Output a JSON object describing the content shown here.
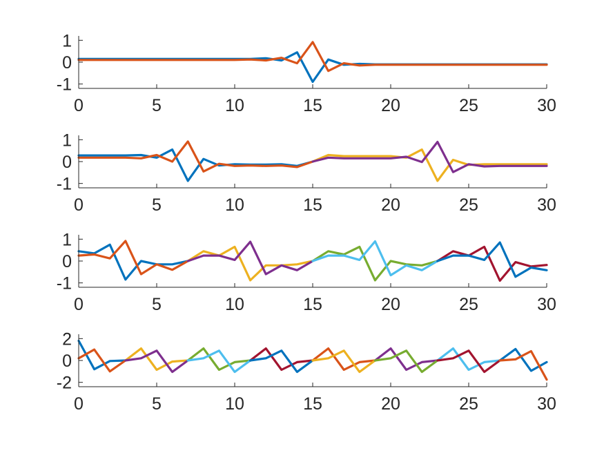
{
  "chart_data": [
    {
      "type": "line",
      "xlim": [
        0,
        30
      ],
      "ylim": [
        -1.2,
        1.2
      ],
      "xticks": [
        "0",
        "5",
        "10",
        "15",
        "20",
        "25",
        "30"
      ],
      "yticks": [
        "1",
        "0",
        "-1"
      ],
      "yticks_values": [
        1,
        0,
        -1
      ],
      "grid": false,
      "series": [
        {
          "color": "#0072BD",
          "x": [
            0,
            1,
            2,
            3,
            4,
            5,
            6,
            7,
            8,
            9,
            10,
            11,
            12,
            13,
            14,
            15,
            16,
            17,
            18,
            19,
            20,
            21,
            22,
            23,
            24,
            25,
            26,
            27,
            28,
            29,
            30
          ],
          "y": [
            0.15,
            0.15,
            0.15,
            0.15,
            0.15,
            0.15,
            0.15,
            0.15,
            0.15,
            0.15,
            0.15,
            0.15,
            0.18,
            0.08,
            0.45,
            -0.9,
            0.12,
            -0.12,
            -0.08,
            -0.1,
            -0.1,
            -0.1,
            -0.1,
            -0.1,
            -0.1,
            -0.1,
            -0.1,
            -0.1,
            -0.1,
            -0.1,
            -0.1
          ]
        },
        {
          "color": "#D95319",
          "x": [
            0,
            1,
            2,
            3,
            4,
            5,
            6,
            7,
            8,
            9,
            10,
            11,
            12,
            13,
            14,
            15,
            16,
            17,
            18,
            19,
            20,
            21,
            22,
            23,
            24,
            25,
            26,
            27,
            28,
            29,
            30
          ],
          "y": [
            0.1,
            0.1,
            0.1,
            0.1,
            0.1,
            0.1,
            0.1,
            0.1,
            0.1,
            0.1,
            0.1,
            0.12,
            0.08,
            0.2,
            -0.05,
            0.92,
            -0.4,
            -0.05,
            -0.15,
            -0.12,
            -0.12,
            -0.12,
            -0.12,
            -0.12,
            -0.12,
            -0.12,
            -0.12,
            -0.12,
            -0.12,
            -0.12,
            -0.12
          ]
        }
      ]
    },
    {
      "type": "line",
      "xlim": [
        0,
        30
      ],
      "ylim": [
        -1.2,
        1.2
      ],
      "xticks": [
        "0",
        "5",
        "10",
        "15",
        "20",
        "25",
        "30"
      ],
      "yticks": [
        "1",
        "0",
        "-1"
      ],
      "yticks_values": [
        1,
        0,
        -1
      ],
      "grid": false,
      "series": [
        {
          "color": "#0072BD",
          "x": [
            0,
            1,
            2,
            3,
            4,
            5,
            6,
            7,
            8,
            9,
            10,
            11,
            12,
            13,
            14,
            15
          ],
          "y": [
            0.28,
            0.28,
            0.28,
            0.28,
            0.3,
            0.18,
            0.55,
            -0.88,
            0.12,
            -0.18,
            -0.12,
            -0.14,
            -0.14,
            -0.12,
            -0.2,
            0.0
          ]
        },
        {
          "color": "#D95319",
          "x": [
            0,
            1,
            2,
            3,
            4,
            5,
            6,
            7,
            8,
            9,
            10,
            11,
            12,
            13,
            14,
            15
          ],
          "y": [
            0.18,
            0.18,
            0.18,
            0.18,
            0.15,
            0.3,
            0.0,
            0.92,
            -0.45,
            -0.1,
            -0.2,
            -0.18,
            -0.2,
            -0.18,
            -0.25,
            0.0
          ]
        },
        {
          "color": "#EDB120",
          "x": [
            15,
            16,
            17,
            18,
            19,
            20,
            21,
            22,
            23,
            24,
            25,
            26,
            27,
            28,
            29,
            30
          ],
          "y": [
            0.0,
            0.3,
            0.25,
            0.25,
            0.25,
            0.25,
            0.18,
            0.55,
            -0.88,
            0.08,
            -0.15,
            -0.12,
            -0.12,
            -0.12,
            -0.12,
            -0.12
          ]
        },
        {
          "color": "#7E2F8E",
          "x": [
            15,
            16,
            17,
            18,
            19,
            20,
            21,
            22,
            23,
            24,
            25,
            26,
            27,
            28,
            29,
            30
          ],
          "y": [
            0.0,
            0.18,
            0.15,
            0.15,
            0.15,
            0.15,
            0.22,
            -0.02,
            0.9,
            -0.48,
            -0.12,
            -0.22,
            -0.2,
            -0.2,
            -0.2,
            -0.2
          ]
        }
      ]
    },
    {
      "type": "line",
      "xlim": [
        0,
        30
      ],
      "ylim": [
        -1.2,
        1.2
      ],
      "xticks": [
        "0",
        "5",
        "10",
        "15",
        "20",
        "25",
        "30"
      ],
      "yticks": [
        "1",
        "0",
        "-1"
      ],
      "yticks_values": [
        1,
        0,
        -1
      ],
      "grid": false,
      "series": [
        {
          "color": "#0072BD",
          "x": [
            0,
            1,
            2,
            3,
            4,
            5,
            6,
            7
          ],
          "y": [
            0.45,
            0.35,
            0.75,
            -0.85,
            0.0,
            -0.15,
            -0.15,
            0.0
          ]
        },
        {
          "color": "#D95319",
          "x": [
            0,
            1,
            2,
            3,
            4,
            5,
            6,
            7
          ],
          "y": [
            0.25,
            0.3,
            0.12,
            0.92,
            -0.6,
            -0.15,
            -0.4,
            0.0
          ]
        },
        {
          "color": "#EDB120",
          "x": [
            7,
            8,
            9,
            10,
            11,
            12,
            13,
            14,
            15
          ],
          "y": [
            0.0,
            0.45,
            0.25,
            0.65,
            -0.88,
            -0.2,
            -0.2,
            -0.15,
            0.0
          ]
        },
        {
          "color": "#7E2F8E",
          "x": [
            7,
            8,
            9,
            10,
            11,
            12,
            13,
            14,
            15
          ],
          "y": [
            0.0,
            0.25,
            0.25,
            0.05,
            0.88,
            -0.6,
            -0.2,
            -0.42,
            0.0
          ]
        },
        {
          "color": "#77AC30",
          "x": [
            15,
            16,
            17,
            18,
            19,
            20,
            21,
            22,
            23
          ],
          "y": [
            0.0,
            0.45,
            0.3,
            0.65,
            -0.88,
            0.0,
            -0.15,
            -0.2,
            0.0
          ]
        },
        {
          "color": "#4DBEEE",
          "x": [
            15,
            16,
            17,
            18,
            19,
            20,
            21,
            22,
            23
          ],
          "y": [
            0.0,
            0.25,
            0.25,
            0.05,
            0.9,
            -0.65,
            -0.2,
            -0.42,
            0.0
          ]
        },
        {
          "color": "#A2142F",
          "x": [
            23,
            24,
            25,
            26,
            27,
            28,
            29,
            30
          ],
          "y": [
            0.0,
            0.45,
            0.25,
            0.65,
            -0.9,
            -0.05,
            -0.25,
            -0.18
          ]
        },
        {
          "color": "#0072BD",
          "x": [
            23,
            24,
            25,
            26,
            27,
            28,
            29,
            30
          ],
          "y": [
            0.0,
            0.25,
            0.25,
            0.05,
            0.85,
            -0.72,
            -0.3,
            -0.42
          ]
        }
      ]
    },
    {
      "type": "line",
      "xlim": [
        0,
        30
      ],
      "ylim": [
        -2.4,
        2.4
      ],
      "xticks": [
        "0",
        "5",
        "10",
        "15",
        "20",
        "25",
        "30"
      ],
      "yticks": [
        "2",
        "0",
        "-2"
      ],
      "yticks_values": [
        2,
        0,
        -2
      ],
      "grid": false,
      "series": [
        {
          "color": "#0072BD",
          "x": [
            0,
            1,
            2,
            3
          ],
          "y": [
            1.8,
            -0.8,
            -0.05,
            0.0
          ]
        },
        {
          "color": "#D95319",
          "x": [
            0,
            1,
            2,
            3
          ],
          "y": [
            0.2,
            1.0,
            -1.0,
            0.0
          ]
        },
        {
          "color": "#EDB120",
          "x": [
            3,
            4,
            5,
            6,
            7
          ],
          "y": [
            0.0,
            1.1,
            -0.85,
            -0.1,
            0.0
          ]
        },
        {
          "color": "#7E2F8E",
          "x": [
            3,
            4,
            5,
            6,
            7
          ],
          "y": [
            0.0,
            0.2,
            0.9,
            -1.05,
            0.0
          ]
        },
        {
          "color": "#77AC30",
          "x": [
            7,
            8,
            9,
            10,
            11
          ],
          "y": [
            0.0,
            1.1,
            -0.85,
            -0.15,
            0.0
          ]
        },
        {
          "color": "#4DBEEE",
          "x": [
            7,
            8,
            9,
            10,
            11
          ],
          "y": [
            0.0,
            0.2,
            0.9,
            -1.05,
            0.0
          ]
        },
        {
          "color": "#A2142F",
          "x": [
            11,
            12,
            13,
            14,
            15
          ],
          "y": [
            0.0,
            1.1,
            -0.85,
            -0.15,
            0.0
          ]
        },
        {
          "color": "#0072BD",
          "x": [
            11,
            12,
            13,
            14,
            15
          ],
          "y": [
            0.0,
            0.2,
            0.9,
            -1.05,
            0.0
          ]
        },
        {
          "color": "#D95319",
          "x": [
            15,
            16,
            17,
            18,
            19
          ],
          "y": [
            0.0,
            1.1,
            -0.85,
            -0.15,
            0.0
          ]
        },
        {
          "color": "#EDB120",
          "x": [
            15,
            16,
            17,
            18,
            19
          ],
          "y": [
            0.0,
            0.2,
            0.9,
            -1.05,
            0.0
          ]
        },
        {
          "color": "#7E2F8E",
          "x": [
            19,
            20,
            21,
            22,
            23
          ],
          "y": [
            0.0,
            1.1,
            -0.85,
            -0.15,
            0.0
          ]
        },
        {
          "color": "#77AC30",
          "x": [
            19,
            20,
            21,
            22,
            23
          ],
          "y": [
            0.0,
            0.2,
            0.9,
            -1.05,
            0.0
          ]
        },
        {
          "color": "#4DBEEE",
          "x": [
            23,
            24,
            25,
            26,
            27
          ],
          "y": [
            0.0,
            1.1,
            -0.85,
            -0.15,
            0.0
          ]
        },
        {
          "color": "#A2142F",
          "x": [
            23,
            24,
            25,
            26,
            27
          ],
          "y": [
            0.0,
            0.2,
            0.9,
            -1.05,
            0.0
          ]
        },
        {
          "color": "#0072BD",
          "x": [
            27,
            28,
            29,
            30
          ],
          "y": [
            0.0,
            1.05,
            -0.95,
            -0.15
          ]
        },
        {
          "color": "#D95319",
          "x": [
            27,
            28,
            29,
            30
          ],
          "y": [
            0.0,
            0.1,
            0.85,
            -1.75
          ]
        }
      ]
    }
  ]
}
